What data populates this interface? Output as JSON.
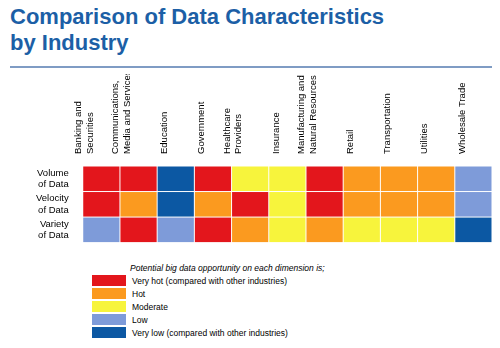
{
  "chart_data": {
    "type": "heatmap",
    "title": "Comparison of Data Characteristics by Industry",
    "categories": [
      "Banking and Securities",
      "Communications, Media and Services",
      "Education",
      "Government",
      "Healthcare Providers",
      "Insurance",
      "Manufacturing and Natural Resources",
      "Retail",
      "Transportation",
      "Utilities",
      "Wholesale Trade"
    ],
    "rows": [
      "Volume of Data",
      "Velocity of Data",
      "Variety of Data"
    ],
    "cells": [
      [
        5,
        5,
        1,
        5,
        3,
        3,
        5,
        4,
        4,
        4,
        2
      ],
      [
        5,
        4,
        1,
        4,
        5,
        3,
        5,
        4,
        4,
        4,
        2
      ],
      [
        2,
        5,
        2,
        5,
        4,
        3,
        4,
        3,
        3,
        3,
        1
      ]
    ],
    "legend_title": "Potential big data opportunity on each dimension is;",
    "levels": [
      {
        "value": 5,
        "label": "Very hot (compared with other industries)",
        "color": "#e3161c"
      },
      {
        "value": 4,
        "label": "Hot",
        "color": "#fb9a1f"
      },
      {
        "value": 3,
        "label": "Moderate",
        "color": "#f7f43c"
      },
      {
        "value": 2,
        "label": "Low",
        "color": "#7e9bd9"
      },
      {
        "value": 1,
        "label": "Very low (compared with other industries)",
        "color": "#0c58a3"
      }
    ]
  }
}
